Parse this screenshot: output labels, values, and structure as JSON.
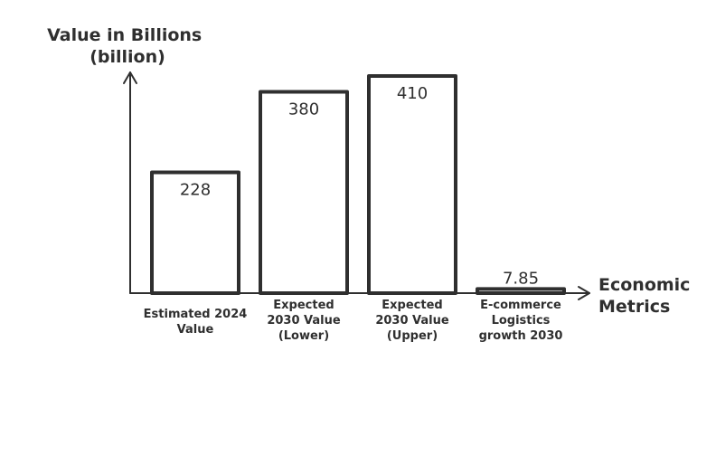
{
  "chart_data": {
    "type": "bar",
    "ylabel": [
      "Value in Billions",
      "(billion)"
    ],
    "xlabel": [
      "Economic",
      "Metrics"
    ],
    "categories": [
      [
        "Estimated 2024",
        "Value"
      ],
      [
        "Expected",
        "2030 Value",
        "(Lower)"
      ],
      [
        "Expected",
        "2030 Value",
        "(Upper)"
      ],
      [
        "E-commerce",
        "Logistics",
        "growth 2030"
      ]
    ],
    "values": [
      228,
      380,
      410,
      7.85
    ],
    "value_labels": [
      "228",
      "380",
      "410",
      "7.85"
    ],
    "ylim": [
      0,
      410
    ],
    "grid": false,
    "colors": {
      "stroke": "#2f2f2f",
      "fill": "#ffffff",
      "text": "#2f2f2f"
    }
  }
}
